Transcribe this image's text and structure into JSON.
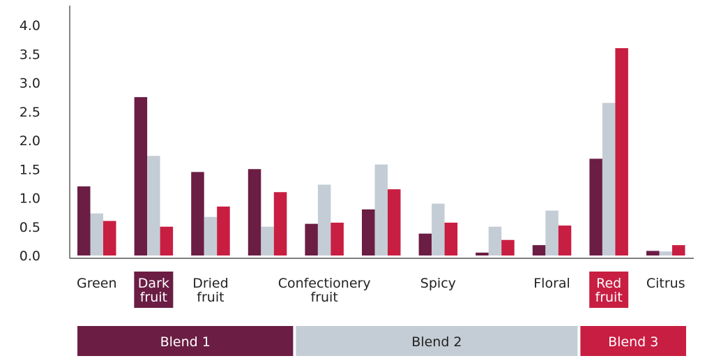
{
  "chart_data": {
    "type": "bar",
    "categories": [
      [
        "Green"
      ],
      [
        "Dark",
        "fruit"
      ],
      [
        "Dried",
        "fruit"
      ],
      [
        ""
      ],
      [
        "Confectionery",
        "fruit"
      ],
      [
        ""
      ],
      [
        "Spicy"
      ],
      [
        ""
      ],
      [
        "Floral"
      ],
      [
        "Red",
        "fruit"
      ],
      [
        "Citrus"
      ]
    ],
    "highlighted_categories": [
      1,
      9
    ],
    "highlight_colors": [
      "#6b1d44",
      "#c81e42"
    ],
    "series": [
      {
        "values": [
          1.2,
          2.75,
          1.45,
          1.5,
          0.55,
          0.8,
          0.38,
          0.05,
          0.18,
          1.68,
          0.08
        ],
        "color": "#6b1d44"
      },
      {
        "values": [
          0.73,
          1.73,
          0.67,
          0.5,
          1.23,
          1.58,
          0.9,
          0.5,
          0.78,
          2.65,
          0.07
        ],
        "color": "#c4cdd5"
      },
      {
        "values": [
          0.6,
          0.5,
          0.85,
          1.1,
          0.57,
          1.15,
          0.57,
          0.27,
          0.52,
          3.6,
          0.18
        ],
        "color": "#c81e42"
      }
    ],
    "yticks": [
      "0.0",
      "0.5",
      "1.0",
      "1.5",
      "2.0",
      "2.5",
      "3.0",
      "3.5",
      "4.0"
    ],
    "ylim": [
      0,
      4.0
    ],
    "grid": false,
    "groups": [
      {
        "label": "Blend 1",
        "color": "#6b1d44",
        "text_color": "#ffffff",
        "from": 0,
        "to": 3
      },
      {
        "label": "Blend 2",
        "color": "#c4cdd5",
        "text_color": "#222222",
        "from": 4,
        "to": 8
      },
      {
        "label": "Blend 3",
        "color": "#c81e42",
        "text_color": "#ffffff",
        "from": 9,
        "to": 10
      }
    ]
  }
}
